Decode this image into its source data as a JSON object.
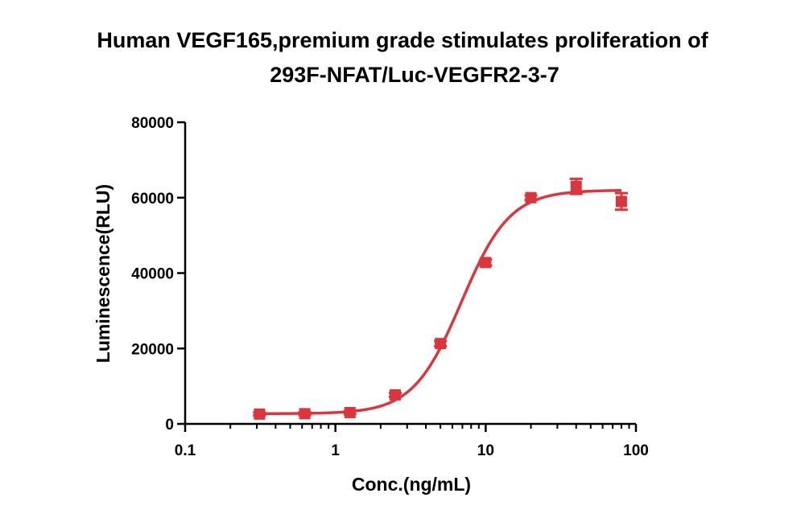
{
  "chart_data": {
    "type": "scatter",
    "title_line1": "Human VEGF165,premium grade  stimulates proliferation of",
    "title_line2": "293F-NFAT/Luc-VEGFR2-3-7",
    "xlabel": "Conc.(ng/mL)",
    "ylabel": "Luminescence(RLU)",
    "x_scale": "log",
    "xlim": [
      0.1,
      100
    ],
    "ylim": [
      0,
      80000
    ],
    "x_ticks": [
      "0.1",
      "1",
      "10",
      "100"
    ],
    "y_ticks": [
      "0",
      "20000",
      "40000",
      "60000",
      "80000"
    ],
    "grid": false,
    "legend": "none",
    "color": "#d9363e",
    "series": [
      {
        "x": [
          0.3125,
          0.625,
          1.25,
          2.5,
          5,
          10,
          20,
          40,
          80
        ],
        "y": [
          2600,
          2700,
          3000,
          7700,
          21300,
          42800,
          60000,
          63000,
          59000
        ],
        "error": [
          400,
          400,
          400,
          500,
          700,
          800,
          600,
          2000,
          2200
        ]
      }
    ],
    "fit": {
      "type": "4PL",
      "bottom": 2700,
      "top": 62000,
      "ec50": 6.9,
      "hill": 2.7
    }
  }
}
